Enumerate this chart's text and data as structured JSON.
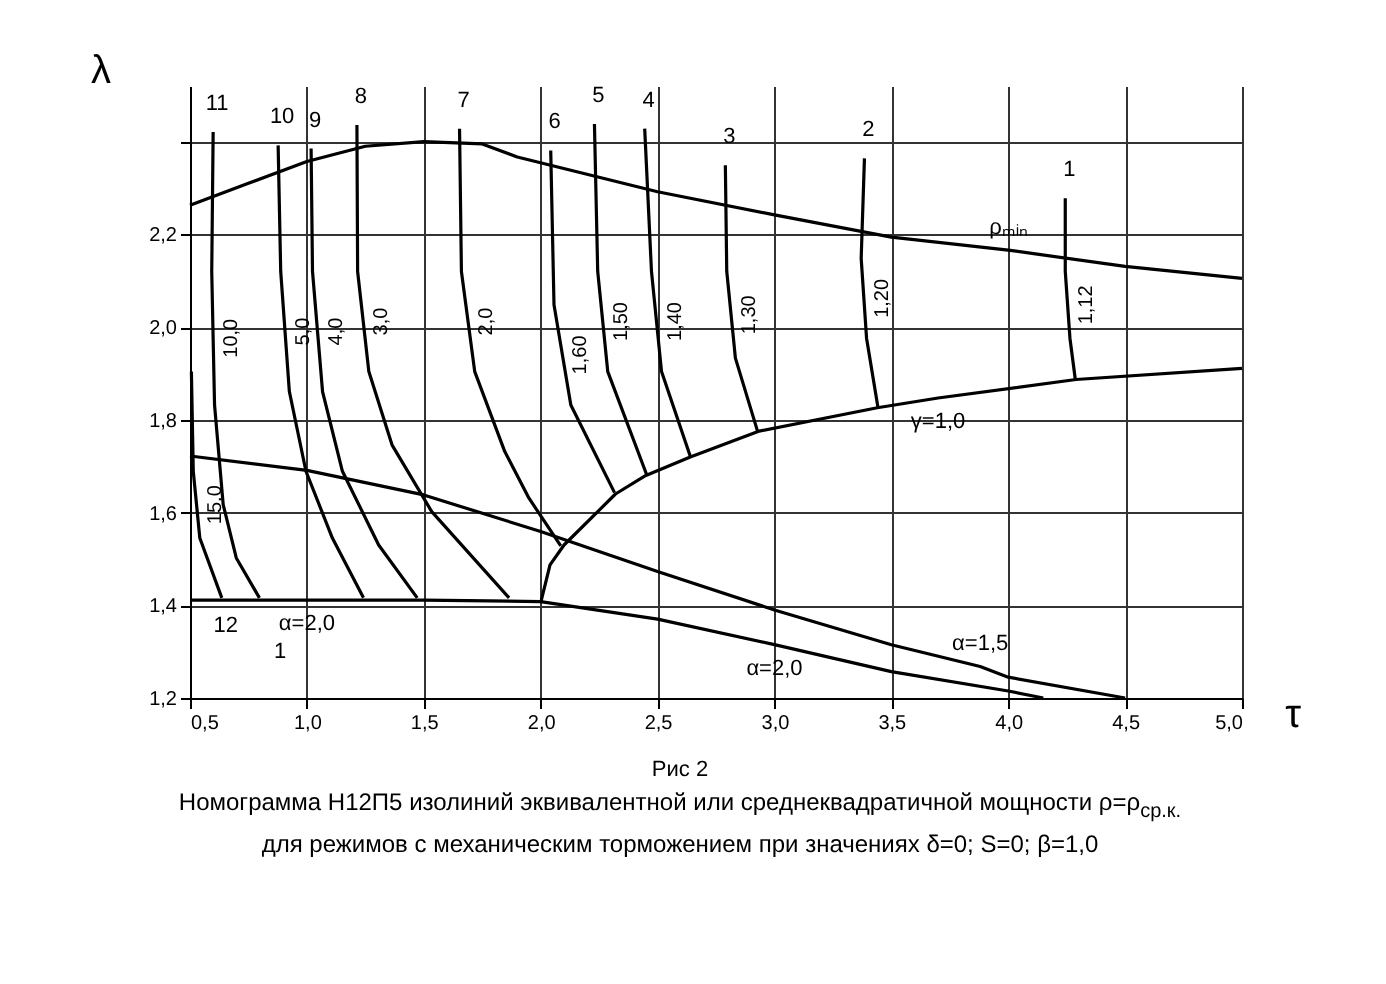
{
  "chart_data": {
    "type": "line",
    "xlabel": "τ",
    "ylabel": "λ",
    "xlim": [
      0.5,
      5.0
    ],
    "ylim": [
      1.2,
      2.52
    ],
    "xticks": [
      {
        "value": 0.5,
        "label": "0,5"
      },
      {
        "value": 1.0,
        "label": "1,0"
      },
      {
        "value": 1.5,
        "label": "1,5"
      },
      {
        "value": 2.0,
        "label": "2,0"
      },
      {
        "value": 2.5,
        "label": "2,5"
      },
      {
        "value": 3.0,
        "label": "3,0"
      },
      {
        "value": 3.5,
        "label": "3,5"
      },
      {
        "value": 4.0,
        "label": "4,0"
      },
      {
        "value": 4.5,
        "label": "4,5"
      },
      {
        "value": 5.0,
        "label": "5,0"
      }
    ],
    "yticks": [
      {
        "value": 1.2,
        "label": "1,2"
      },
      {
        "value": 1.4,
        "label": "1,4"
      },
      {
        "value": 1.6,
        "label": "1,6"
      },
      {
        "value": 1.8,
        "label": "1,8"
      },
      {
        "value": 2.0,
        "label": "2,0"
      },
      {
        "value": 2.2,
        "label": "2,2"
      },
      {
        "value": 2.4,
        "label": null
      }
    ],
    "grid": true,
    "series": [
      {
        "name": "15,0",
        "color": "#000000",
        "x": [
          0.506,
          0.514,
          0.542,
          0.636
        ],
        "values": [
          1.904,
          1.689,
          1.545,
          1.416
        ]
      },
      {
        "name": "10,0",
        "color": "#000000",
        "x": [
          0.599,
          0.593,
          0.605,
          0.642,
          0.698,
          0.797
        ],
        "values": [
          2.421,
          2.12,
          1.832,
          1.617,
          1.502,
          1.416
        ]
      },
      {
        "name": "5,0",
        "color": "#000000",
        "x": [
          0.877,
          0.888,
          0.925,
          0.996,
          1.109,
          1.242
        ],
        "values": [
          2.392,
          2.12,
          1.861,
          1.689,
          1.545,
          1.416
        ]
      },
      {
        "name": "4,0",
        "color": "#000000",
        "x": [
          1.018,
          1.024,
          1.067,
          1.152,
          1.307,
          1.472
        ],
        "values": [
          2.385,
          2.12,
          1.861,
          1.689,
          1.53,
          1.416
        ]
      },
      {
        "name": "3,0",
        "color": "#000000",
        "x": [
          1.214,
          1.217,
          1.265,
          1.364,
          1.534,
          1.865
        ],
        "values": [
          2.436,
          2.12,
          1.904,
          1.746,
          1.602,
          1.416
        ]
      },
      {
        "name": "2,0",
        "color": "#000000",
        "x": [
          1.653,
          1.661,
          1.718,
          1.846,
          1.95,
          2.086
        ],
        "values": [
          2.428,
          2.12,
          1.904,
          1.732,
          1.631,
          1.528
        ]
      },
      {
        "name": "1,60",
        "color": "#000000",
        "x": [
          2.043,
          2.057,
          2.129,
          2.316
        ],
        "values": [
          2.381,
          2.048,
          1.832,
          1.643
        ]
      },
      {
        "name": "1,50",
        "color": "#000000",
        "x": [
          2.23,
          2.244,
          2.287,
          2.454
        ],
        "values": [
          2.438,
          2.12,
          1.904,
          1.681
        ]
      },
      {
        "name": "1,40",
        "color": "#000000",
        "x": [
          2.445,
          2.474,
          2.517,
          2.641
        ],
        "values": [
          2.428,
          2.12,
          1.904,
          1.72
        ]
      },
      {
        "name": "1,30",
        "color": "#000000",
        "x": [
          2.79,
          2.796,
          2.833,
          2.928
        ],
        "values": [
          2.349,
          2.12,
          1.933,
          1.775
        ]
      },
      {
        "name": "1,20",
        "color": "#000000",
        "x": [
          3.385,
          3.371,
          3.394,
          3.443
        ],
        "values": [
          2.364,
          2.148,
          1.976,
          1.826
        ]
      },
      {
        "name": "1,12",
        "color": "#000000",
        "x": [
          4.244,
          4.244,
          4.264,
          4.287
        ],
        "values": [
          2.278,
          2.12,
          1.976,
          1.887
        ]
      },
      {
        "name": "ρₘᵢₙ",
        "color": "#000000",
        "x": [
          0.5,
          0.75,
          1.0,
          1.25,
          1.5,
          1.75,
          1.9,
          2.5,
          3.0,
          3.5,
          4.0,
          4.5,
          5.0
        ],
        "values": [
          2.263,
          2.31,
          2.357,
          2.39,
          2.4,
          2.395,
          2.367,
          2.292,
          2.242,
          2.194,
          2.166,
          2.131,
          2.105
        ]
      },
      {
        "name": "γ=1,0",
        "color": "#000000",
        "x": [
          2.0,
          2.04,
          2.1,
          2.32,
          2.45,
          2.64,
          2.93,
          3.44,
          3.7,
          4.29,
          5.0
        ],
        "values": [
          1.405,
          1.487,
          1.53,
          1.64,
          1.68,
          1.72,
          1.775,
          1.826,
          1.847,
          1.887,
          1.911
        ]
      },
      {
        "name": "α=1,5",
        "color": "#000000",
        "x": [
          0.5,
          1.0,
          1.5,
          2.0,
          2.5,
          3.0,
          3.5,
          3.88,
          4.0,
          4.5
        ],
        "values": [
          1.722,
          1.691,
          1.638,
          1.559,
          1.473,
          1.39,
          1.315,
          1.268,
          1.245,
          1.2
        ]
      },
      {
        "name": "α=2,0",
        "color": "#000000",
        "x": [
          0.5,
          1.0,
          1.5,
          2.0,
          2.5,
          3.0,
          3.5,
          4.0,
          4.15
        ],
        "values": [
          1.411,
          1.411,
          1.411,
          1.408,
          1.37,
          1.315,
          1.257,
          1.215,
          1.2
        ]
      }
    ],
    "annotations": [
      "11",
      "10",
      "9",
      "8",
      "7",
      "6",
      "5",
      "4",
      "3",
      "2",
      "1",
      "12",
      "1",
      "Рис 2",
      "Номограмма Н12П5 изолиний эквивалентной или среднеквадратичной мощности  ρ=ρ$_{ср.к.}$",
      "для режимов с механическим торможением при значениях δ=0; S=0;  β=1,0"
    ]
  }
}
